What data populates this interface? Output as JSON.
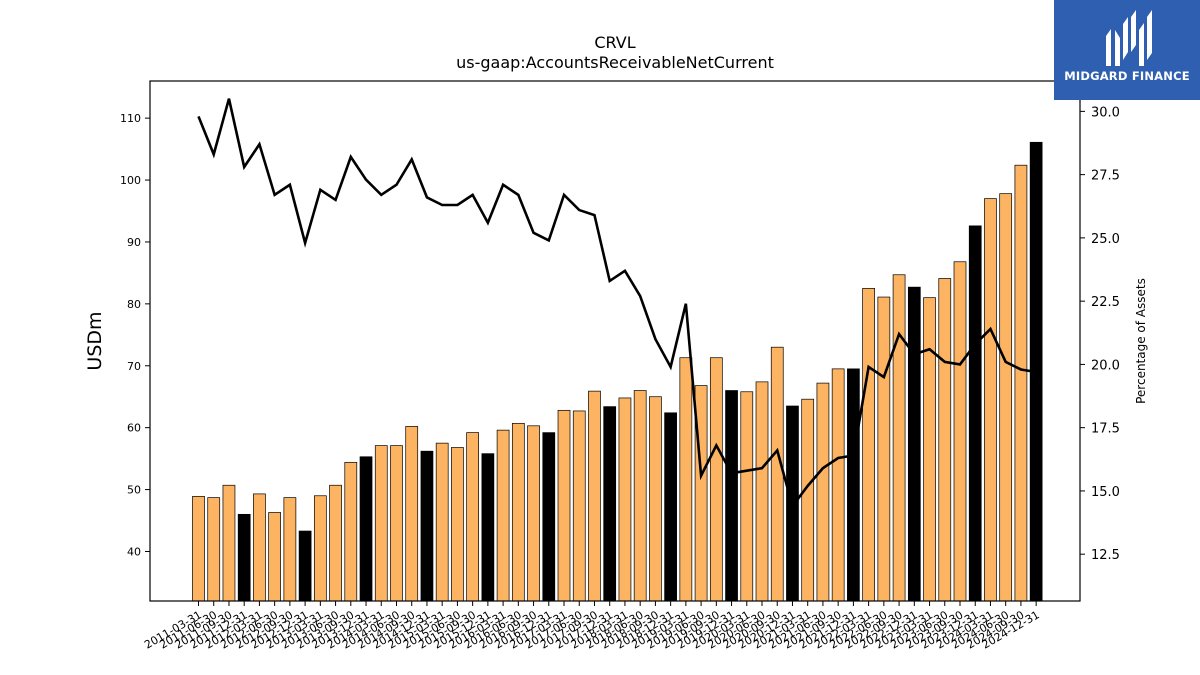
{
  "brand": {
    "name": "MIDGARD FINANCE",
    "color": "#2f5fb0"
  },
  "colors": {
    "bar_regular": "#fdb462",
    "bar_year_end": "#000000",
    "line": "#000000"
  },
  "chart_data": {
    "type": "bar",
    "title": "CRVL",
    "subtitle": "us-gaap:AccountsReceivableNetCurrent",
    "ylabel": "USDm",
    "y2label": "Percentage of Assets",
    "ylim": [
      32,
      116
    ],
    "y2lim": [
      10.65,
      31.2
    ],
    "yticks": [
      40,
      50,
      60,
      70,
      80,
      90,
      100,
      110
    ],
    "y2ticks": [
      "12.5",
      "15.0",
      "17.5",
      "20.0",
      "22.5",
      "25.0",
      "27.5",
      "30.0"
    ],
    "categories": [
      "2011-03-31",
      "2011-06-30",
      "2011-09-30",
      "2011-12-31",
      "2012-03-31",
      "2012-06-30",
      "2012-09-30",
      "2012-12-31",
      "2013-03-31",
      "2013-06-30",
      "2013-09-30",
      "2013-12-31",
      "2014-03-31",
      "2014-06-30",
      "2014-09-30",
      "2014-12-31",
      "2015-03-31",
      "2015-06-30",
      "2015-09-30",
      "2015-12-31",
      "2016-03-31",
      "2016-06-30",
      "2016-09-30",
      "2016-12-31",
      "2017-03-31",
      "2017-06-30",
      "2017-09-30",
      "2017-12-31",
      "2018-03-31",
      "2018-06-30",
      "2018-09-30",
      "2018-12-31",
      "2019-03-31",
      "2019-06-30",
      "2019-09-30",
      "2019-12-31",
      "2020-03-31",
      "2020-06-30",
      "2020-09-30",
      "2020-12-31",
      "2021-03-31",
      "2021-06-30",
      "2021-09-30",
      "2021-12-31",
      "2022-03-31",
      "2022-06-30",
      "2022-09-30",
      "2022-12-31",
      "2023-03-31",
      "2023-06-30",
      "2023-09-30",
      "2023-12-31",
      "2024-03-31",
      "2024-06-30",
      "2024-09-30",
      "2024-12-31"
    ],
    "series": [
      {
        "type": "bar",
        "axis": "left",
        "values": [
          48.9,
          48.7,
          50.7,
          46.0,
          49.3,
          46.3,
          48.7,
          43.3,
          49.0,
          50.7,
          54.4,
          55.3,
          57.1,
          57.1,
          60.2,
          56.2,
          57.5,
          56.8,
          59.2,
          55.8,
          59.6,
          60.7,
          60.3,
          59.2,
          62.8,
          62.7,
          65.9,
          63.4,
          64.8,
          66.0,
          65.0,
          62.4,
          71.3,
          66.8,
          71.3,
          66.0,
          65.8,
          67.4,
          73.0,
          63.5,
          64.6,
          67.2,
          69.5,
          69.5,
          82.5,
          81.1,
          84.7,
          82.7,
          81.0,
          84.1,
          86.8,
          92.6,
          97.0,
          97.8,
          102.4,
          106.1
        ]
      },
      {
        "type": "line",
        "axis": "right",
        "values": [
          29.8,
          28.3,
          30.5,
          27.8,
          28.7,
          26.7,
          27.1,
          24.8,
          26.9,
          26.5,
          28.2,
          27.3,
          26.7,
          27.1,
          28.1,
          26.6,
          26.3,
          26.3,
          26.7,
          25.6,
          27.1,
          26.7,
          25.2,
          24.9,
          26.7,
          26.1,
          25.9,
          23.3,
          23.7,
          22.7,
          21.0,
          19.9,
          22.4,
          15.6,
          16.8,
          15.7,
          15.8,
          15.9,
          16.6,
          14.4,
          15.2,
          15.9,
          16.3,
          16.4,
          19.9,
          19.5,
          21.2,
          20.4,
          20.6,
          20.1,
          20.0,
          20.8,
          21.4,
          20.1,
          19.8,
          19.7
        ]
      }
    ]
  }
}
